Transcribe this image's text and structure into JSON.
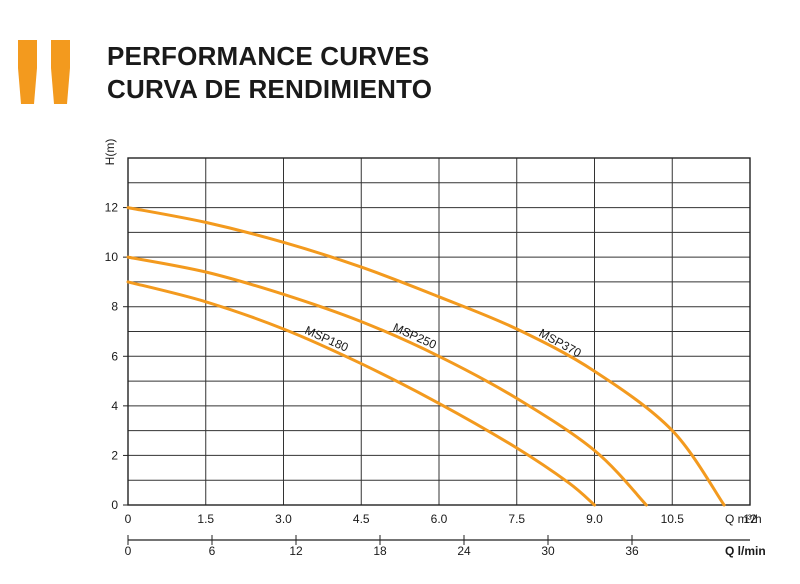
{
  "header": {
    "title_line1": "PERFORMANCE CURVES",
    "title_line2": "CURVA DE RENDIMIENTO",
    "accent_color": "#f39a1e",
    "quote_icon": "double-quote-icon"
  },
  "chart_data": {
    "type": "line",
    "title": "PERFORMANCE CURVES / CURVA DE RENDIMIENTO",
    "ylabel": "H(m)",
    "xlabel": "Q m³/h",
    "xlabel_secondary": "Q l/min",
    "xlim": [
      0,
      12
    ],
    "ylim": [
      0,
      14
    ],
    "x_ticks": [
      "0",
      "1.5",
      "3.0",
      "4.5",
      "6.0",
      "7.5",
      "9.0",
      "10.5",
      "12"
    ],
    "x_tick_values": [
      0,
      1.5,
      3.0,
      4.5,
      6.0,
      7.5,
      9.0,
      10.5,
      12
    ],
    "y_ticks": [
      "0",
      "2",
      "4",
      "6",
      "8",
      "10",
      "12"
    ],
    "y_tick_values": [
      0,
      2,
      4,
      6,
      8,
      10,
      12
    ],
    "secondary_x_ticks": [
      "0",
      "6",
      "12",
      "18",
      "24",
      "30",
      "36"
    ],
    "secondary_x_tick_values": [
      0,
      6,
      12,
      18,
      24,
      30,
      36
    ],
    "grid": true,
    "line_color": "#f39a1e",
    "series": [
      {
        "name": "MSP180",
        "x": [
          0,
          1.5,
          3.0,
          4.5,
          6.0,
          7.5,
          8.5,
          9.0
        ],
        "y": [
          9.0,
          8.2,
          7.1,
          5.7,
          4.1,
          2.3,
          0.9,
          0
        ]
      },
      {
        "name": "MSP250",
        "x": [
          0,
          1.5,
          3.0,
          4.5,
          6.0,
          7.5,
          9.0,
          10.0
        ],
        "y": [
          10.0,
          9.4,
          8.5,
          7.4,
          6.0,
          4.3,
          2.2,
          0
        ]
      },
      {
        "name": "MSP370",
        "x": [
          0,
          1.5,
          3.0,
          4.5,
          6.0,
          7.5,
          9.0,
          10.5,
          11.5
        ],
        "y": [
          12.0,
          11.4,
          10.6,
          9.6,
          8.4,
          7.1,
          5.4,
          3.0,
          0
        ]
      }
    ]
  }
}
